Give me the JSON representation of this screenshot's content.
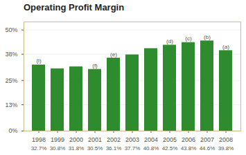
{
  "chart_data": {
    "type": "bar",
    "title": "Operating Profit Margin",
    "categories": [
      "1998",
      "1999",
      "2000",
      "2001",
      "2002",
      "2003",
      "2004",
      "2005",
      "2006",
      "2007",
      "2008"
    ],
    "values": [
      32.7,
      30.8,
      31.8,
      30.5,
      36.1,
      37.7,
      40.8,
      42.5,
      43.8,
      44.6,
      39.8
    ],
    "value_labels": [
      "32.7%",
      "30.8%",
      "31.8%",
      "30.5%",
      "36.1%",
      "37.7%",
      "40.8%",
      "42.5%",
      "43.8%",
      "44.6%",
      "39.8%"
    ],
    "data_labels": true,
    "annotations": [
      {
        "x": "1998",
        "text": "(i)"
      },
      {
        "x": "2001",
        "text": "(f)"
      },
      {
        "x": "2002",
        "text": "(e)"
      },
      {
        "x": "2005",
        "text": "(d)"
      },
      {
        "x": "2006",
        "text": "(c)"
      },
      {
        "x": "2007",
        "text": "(b)"
      },
      {
        "x": "2008",
        "text": "(a)"
      }
    ],
    "color": "#2e8b2e",
    "ylim": [
      0,
      54
    ],
    "yticks": [
      {
        "value": 0,
        "label": "0%"
      },
      {
        "value": 13,
        "label": "13%"
      },
      {
        "value": 25,
        "label": "25%"
      },
      {
        "value": 38,
        "label": "38%"
      },
      {
        "value": 50,
        "label": "50%"
      }
    ],
    "grid": true
  }
}
